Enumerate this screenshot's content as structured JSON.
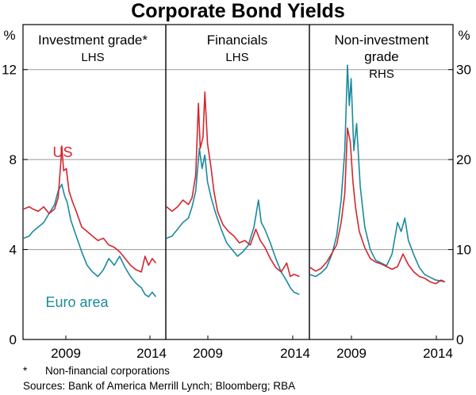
{
  "colors": {
    "us": "#d4262f",
    "euro": "#1a8a9e",
    "axis": "#000000",
    "grid": "#9a9a9a"
  },
  "chart_data": {
    "type": "line",
    "title": "Corporate Bond Yields",
    "left_axis": {
      "unit": "%",
      "ticks": [
        "0",
        "4",
        "8",
        "12"
      ],
      "ylim": [
        0,
        14
      ]
    },
    "right_axis": {
      "unit": "%",
      "ticks": [
        "0",
        "10",
        "20",
        "30"
      ],
      "ylim": [
        0,
        35
      ]
    },
    "x_ticks": [
      "2009",
      "2014"
    ],
    "series_labels": {
      "us": "US",
      "euro": "Euro area"
    },
    "panels": [
      {
        "title_lines": [
          "Investment grade*",
          "LHS"
        ],
        "axis": "left",
        "xlim": [
          2006.5,
          2014.0
        ],
        "series": [
          {
            "name": "US",
            "color_key": "us",
            "x": [
              2006.5,
              2006.8,
              2007.0,
              2007.3,
              2007.6,
              2007.9,
              2008.2,
              2008.4,
              2008.55,
              2008.6,
              2008.7,
              2008.85,
              2009.0,
              2009.2,
              2009.4,
              2009.7,
              2010.0,
              2010.3,
              2010.6,
              2010.9,
              2011.2,
              2011.5,
              2011.8,
              2012.1,
              2012.4,
              2012.7,
              2013.0,
              2013.2,
              2013.4,
              2013.6,
              2013.8
            ],
            "values": [
              5.8,
              5.9,
              5.8,
              5.7,
              5.9,
              5.6,
              5.8,
              6.3,
              7.9,
              8.6,
              7.5,
              7.6,
              6.6,
              6.1,
              5.7,
              5.0,
              4.8,
              4.6,
              4.4,
              4.5,
              4.2,
              4.1,
              3.9,
              3.6,
              3.3,
              3.1,
              3.0,
              3.7,
              3.3,
              3.6,
              3.4
            ]
          },
          {
            "name": "Euro area",
            "color_key": "euro",
            "x": [
              2006.5,
              2006.8,
              2007.0,
              2007.3,
              2007.6,
              2007.9,
              2008.2,
              2008.4,
              2008.6,
              2008.75,
              2008.9,
              2009.1,
              2009.4,
              2009.7,
              2010.0,
              2010.3,
              2010.6,
              2010.9,
              2011.2,
              2011.5,
              2011.8,
              2012.1,
              2012.4,
              2012.7,
              2013.0,
              2013.2,
              2013.4,
              2013.6,
              2013.8
            ],
            "values": [
              4.5,
              4.6,
              4.8,
              5.0,
              5.2,
              5.6,
              6.0,
              6.6,
              6.9,
              6.4,
              6.1,
              5.3,
              4.6,
              3.9,
              3.3,
              3.0,
              2.8,
              3.1,
              3.6,
              3.3,
              3.7,
              3.2,
              2.8,
              2.5,
              2.3,
              2.0,
              1.9,
              2.1,
              1.9
            ]
          }
        ]
      },
      {
        "title_lines": [
          "Financials",
          "LHS"
        ],
        "axis": "left",
        "xlim": [
          2006.5,
          2014.0
        ],
        "series": [
          {
            "name": "US",
            "color_key": "us",
            "x": [
              2006.5,
              2006.8,
              2007.1,
              2007.4,
              2007.7,
              2007.9,
              2008.1,
              2008.25,
              2008.35,
              2008.5,
              2008.6,
              2008.75,
              2008.95,
              2009.1,
              2009.3,
              2009.6,
              2009.9,
              2010.2,
              2010.5,
              2010.8,
              2011.1,
              2011.4,
              2011.65,
              2011.9,
              2012.2,
              2012.5,
              2012.8,
              2013.1,
              2013.3,
              2013.5,
              2013.8
            ],
            "values": [
              5.9,
              5.7,
              5.9,
              6.2,
              6.0,
              6.3,
              7.3,
              10.5,
              8.5,
              9.0,
              11.0,
              8.7,
              7.6,
              6.6,
              5.7,
              5.1,
              4.8,
              4.6,
              4.3,
              4.4,
              4.2,
              4.9,
              4.4,
              4.1,
              3.6,
              3.2,
              3.0,
              3.4,
              2.8,
              2.9,
              2.8
            ]
          },
          {
            "name": "Euro area",
            "color_key": "euro",
            "x": [
              2006.5,
              2006.8,
              2007.1,
              2007.4,
              2007.7,
              2007.9,
              2008.1,
              2008.3,
              2008.45,
              2008.6,
              2008.75,
              2008.95,
              2009.2,
              2009.5,
              2009.8,
              2010.1,
              2010.4,
              2010.7,
              2011.0,
              2011.3,
              2011.55,
              2011.7,
              2011.9,
              2012.2,
              2012.5,
              2012.8,
              2013.1,
              2013.3,
              2013.5,
              2013.8
            ],
            "values": [
              4.5,
              4.6,
              4.9,
              5.2,
              5.4,
              5.9,
              6.6,
              8.5,
              7.6,
              8.2,
              7.0,
              6.3,
              5.6,
              4.9,
              4.3,
              4.0,
              3.7,
              3.9,
              4.2,
              5.0,
              6.2,
              5.2,
              4.9,
              4.3,
              3.6,
              3.0,
              2.6,
              2.3,
              2.1,
              2.0
            ]
          }
        ]
      },
      {
        "title_lines": [
          "Non-investment",
          "grade",
          "RHS"
        ],
        "axis": "right",
        "xlim": [
          2006.5,
          2014.0
        ],
        "series": [
          {
            "name": "US",
            "color_key": "us",
            "x": [
              2006.5,
              2006.8,
              2007.1,
              2007.4,
              2007.7,
              2007.95,
              2008.2,
              2008.4,
              2008.55,
              2008.7,
              2008.85,
              2009.0,
              2009.2,
              2009.5,
              2009.8,
              2010.1,
              2010.4,
              2010.7,
              2011.0,
              2011.3,
              2011.6,
              2011.9,
              2012.2,
              2012.5,
              2012.8,
              2013.1,
              2013.4,
              2013.7,
              2013.9
            ],
            "values": [
              8.0,
              7.6,
              7.9,
              8.6,
              9.6,
              10.5,
              13.0,
              16.2,
              23.5,
              22.0,
              17.5,
              14.6,
              12.0,
              10.2,
              9.0,
              8.6,
              8.4,
              8.1,
              7.8,
              8.1,
              9.5,
              8.3,
              7.5,
              7.0,
              6.8,
              6.4,
              6.2,
              6.6,
              6.4
            ]
          },
          {
            "name": "Euro area",
            "color_key": "euro",
            "x": [
              2006.5,
              2006.8,
              2007.1,
              2007.4,
              2007.7,
              2007.95,
              2008.2,
              2008.4,
              2008.55,
              2008.65,
              2008.75,
              2008.9,
              2009.05,
              2009.25,
              2009.5,
              2009.8,
              2010.1,
              2010.4,
              2010.7,
              2011.0,
              2011.3,
              2011.5,
              2011.7,
              2011.9,
              2012.2,
              2012.5,
              2012.8,
              2013.1,
              2013.4,
              2013.7,
              2013.9
            ],
            "values": [
              7.2,
              7.0,
              7.4,
              8.0,
              9.5,
              11.5,
              15.5,
              21.0,
              30.5,
              26.0,
              29.0,
              21.0,
              24.0,
              17.0,
              12.5,
              10.0,
              8.8,
              8.5,
              8.2,
              9.5,
              13.0,
              12.0,
              13.5,
              11.0,
              9.4,
              8.0,
              7.2,
              6.9,
              6.6,
              6.5,
              6.4
            ]
          }
        ]
      }
    ]
  },
  "footnotes": {
    "marker": "*",
    "note": "Non-financial corporations",
    "sources": "Sources: Bank of America Merrill Lynch; Bloomberg; RBA"
  }
}
